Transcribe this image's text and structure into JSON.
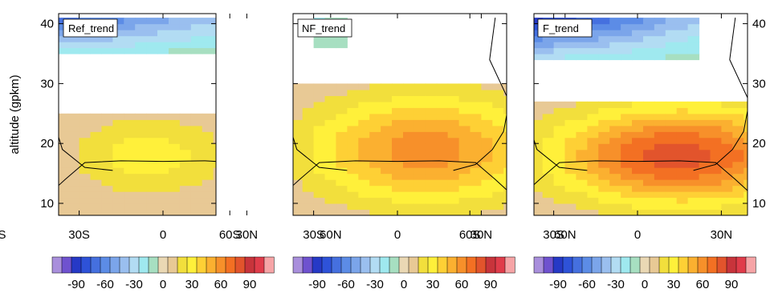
{
  "figure": {
    "ylabel": "altitude (gpkm)",
    "xtick_labels": [
      "60S",
      "30S",
      "0",
      "30N",
      "60N"
    ],
    "ytick_labels": [
      "10",
      "20",
      "30",
      "40"
    ],
    "colorbar_tick_labels": [
      "-90",
      "-60",
      "-30",
      "0",
      "30",
      "60",
      "90"
    ]
  },
  "palette": {
    "levels": [
      -105,
      -95,
      -85,
      -75,
      -65,
      -55,
      -45,
      -35,
      -25,
      -15,
      -5,
      5,
      15,
      25,
      35,
      45,
      55,
      65,
      75,
      85,
      95,
      105
    ],
    "colors": [
      "#a98fdc",
      "#6f52cf",
      "#2639c6",
      "#2e52d8",
      "#4570df",
      "#5c8ce6",
      "#7ba5ea",
      "#9abfef",
      "#b2dcf3",
      "#9fe9ef",
      "#a7dfc1",
      "#ead8b4",
      "#e8c995",
      "#f2df3c",
      "#fff03a",
      "#fed035",
      "#fbb030",
      "#f7902a",
      "#f37023",
      "#e2542c",
      "#c8343b",
      "#e03c4a",
      "#f6a4a6"
    ]
  },
  "chart_data": [
    {
      "type": "heatmap",
      "title": "Ref_trend",
      "x": "latitude",
      "x_range": [
        -90,
        90
      ],
      "ylabel": "altitude (gpkm)",
      "y_range": [
        8,
        41
      ],
      "fields": {
        "upper_negative": {
          "lat_range": [
            -40,
            32
          ],
          "alt_range": [
            35,
            41
          ],
          "min": -75
        },
        "lower_positive": {
          "lat_range": [
            -40,
            32
          ],
          "alt_range": [
            8,
            25
          ],
          "center": [
            -5,
            18
          ],
          "max": 30
        }
      }
    },
    {
      "type": "heatmap",
      "title": "NF_trend",
      "x": "latitude",
      "x_range": [
        -90,
        90
      ],
      "ylabel": "altitude (gpkm)",
      "y_range": [
        8,
        41
      ],
      "fields": {
        "upper_negative": {
          "lat_range": [
            -28,
            -18
          ],
          "alt_range": [
            36,
            41
          ],
          "min": -20
        },
        "lower_positive": {
          "lat_range": [
            -50,
            52
          ],
          "alt_range": [
            8,
            30
          ],
          "center": [
            10,
            19
          ],
          "max": 60
        }
      }
    },
    {
      "type": "heatmap",
      "title": "F_trend",
      "x": "latitude",
      "x_range": [
        -90,
        90
      ],
      "ylabel": "altitude (gpkm)",
      "y_range": [
        8,
        41
      ],
      "fields": {
        "upper_negative": {
          "lat_range": [
            -45,
            20
          ],
          "alt_range": [
            34,
            41
          ],
          "min": -100
        },
        "lower_positive": {
          "lat_range": [
            -48,
            60
          ],
          "alt_range": [
            8,
            27
          ],
          "center": [
            15,
            18
          ],
          "max": 80
        }
      }
    }
  ]
}
